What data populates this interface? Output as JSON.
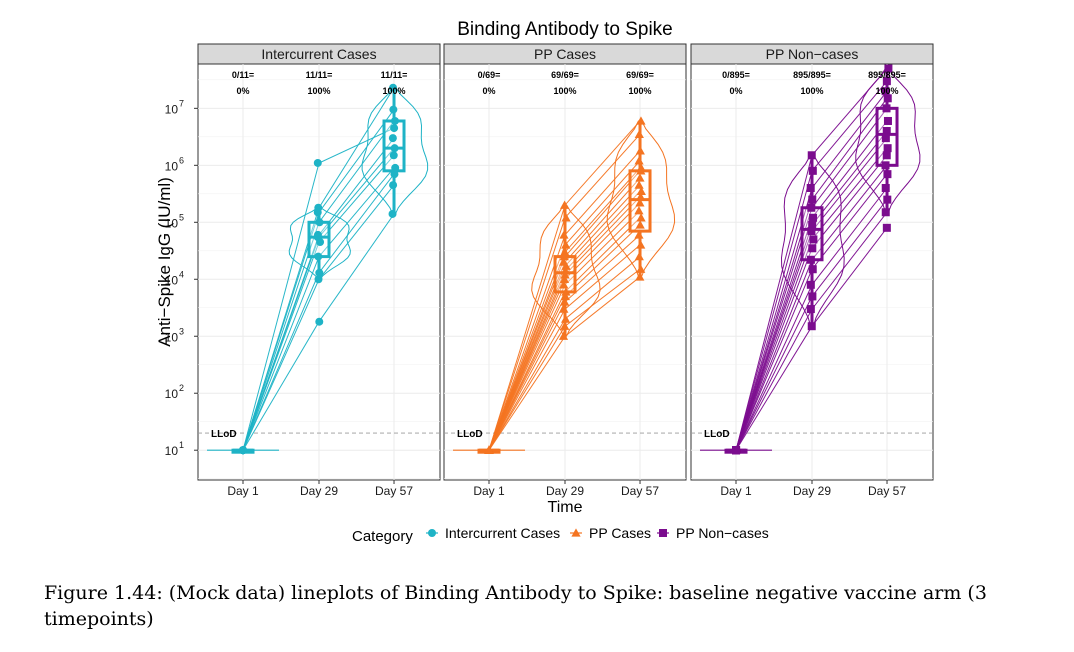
{
  "caption": "Figure 1.44: (Mock data) lineplots of Binding Antibody to Spike: baseline negative vaccine arm (3 timepoints)",
  "chart_data": {
    "type": "line",
    "title": "Binding Antibody to Spike",
    "xlabel": "Time",
    "ylabel": "Anti−Spike IgG (IU/ml)",
    "y_scale": "log10",
    "ylim": [
      3,
      60000000
    ],
    "y_ticks": [
      {
        "value": 10,
        "label": "10",
        "exp": "1"
      },
      {
        "value": 100,
        "label": "10",
        "exp": "2"
      },
      {
        "value": 1000,
        "label": "10",
        "exp": "3"
      },
      {
        "value": 10000,
        "label": "10",
        "exp": "4"
      },
      {
        "value": 100000,
        "label": "10",
        "exp": "5"
      },
      {
        "value": 1000000,
        "label": "10",
        "exp": "6"
      },
      {
        "value": 10000000,
        "label": "10",
        "exp": "7"
      }
    ],
    "categories": [
      "Day 1",
      "Day 29",
      "Day 57"
    ],
    "lloq": {
      "value": 20,
      "label": "LLoD"
    },
    "grid": true,
    "legend": {
      "title": "Category",
      "position": "bottom",
      "entries": [
        {
          "name": "Intercurrent Cases",
          "color": "#1EB3C6",
          "marker": "circle"
        },
        {
          "name": "PP Cases",
          "color": "#F47421",
          "marker": "triangle"
        },
        {
          "name": "PP Non−cases",
          "color": "#7B0C8E",
          "marker": "square"
        }
      ]
    },
    "panels": [
      {
        "strip": "Intercurrent Cases",
        "color": "#1EB3C6",
        "marker": "circle",
        "response_labels": [
          [
            "0/11=",
            "0%"
          ],
          [
            "11/11=",
            "100%"
          ],
          [
            "11/11=",
            "100%"
          ]
        ],
        "boxes": [
          {
            "q1": 10,
            "median": 10,
            "q3": 10,
            "whisker_low": 10,
            "whisker_high": 10
          },
          {
            "q1": 25000,
            "median": 55000,
            "q3": 100000,
            "whisker_low": 10000,
            "whisker_high": 180000
          },
          {
            "q1": 800000,
            "median": 2000000,
            "q3": 6000000,
            "whisker_low": 140000,
            "whisker_high": 23000000
          }
        ],
        "subjects": [
          [
            10,
            1100000,
            4500000
          ],
          [
            10,
            180000,
            23000000
          ],
          [
            10,
            150000,
            9500000
          ],
          [
            10,
            100000,
            6000000
          ],
          [
            10,
            60000,
            3000000
          ],
          [
            10,
            55000,
            2000000
          ],
          [
            10,
            45000,
            1500000
          ],
          [
            10,
            25000,
            900000
          ],
          [
            10,
            13000,
            700000
          ],
          [
            10,
            10000,
            450000
          ],
          [
            10,
            1800,
            140000
          ]
        ]
      },
      {
        "strip": "PP Cases",
        "color": "#F47421",
        "marker": "triangle",
        "response_labels": [
          [
            "0/69=",
            "0%"
          ],
          [
            "69/69=",
            "100%"
          ],
          [
            "69/69=",
            "100%"
          ]
        ],
        "boxes": [
          {
            "q1": 10,
            "median": 10,
            "q3": 10,
            "whisker_low": 10,
            "whisker_high": 10
          },
          {
            "q1": 6000,
            "median": 13000,
            "q3": 25000,
            "whisker_low": 1000,
            "whisker_high": 200000
          },
          {
            "q1": 70000,
            "median": 250000,
            "q3": 800000,
            "whisker_low": 11000,
            "whisker_high": 6000000
          }
        ],
        "subjects": [
          [
            10,
            200000,
            6000000
          ],
          [
            10,
            120000,
            3500000
          ],
          [
            10,
            60000,
            1800000
          ],
          [
            10,
            40000,
            1200000
          ],
          [
            10,
            30000,
            900000
          ],
          [
            10,
            25000,
            800000
          ],
          [
            10,
            20000,
            600000
          ],
          [
            10,
            17000,
            450000
          ],
          [
            10,
            14000,
            350000
          ],
          [
            10,
            12000,
            280000
          ],
          [
            10,
            10000,
            220000
          ],
          [
            10,
            8000,
            160000
          ],
          [
            10,
            6000,
            120000
          ],
          [
            10,
            5000,
            90000
          ],
          [
            10,
            4000,
            60000
          ],
          [
            10,
            3000,
            40000
          ],
          [
            10,
            2000,
            25000
          ],
          [
            10,
            1500,
            15000
          ],
          [
            10,
            1000,
            11000
          ]
        ]
      },
      {
        "strip": "PP Non−cases",
        "color": "#7B0C8E",
        "marker": "square",
        "response_labels": [
          [
            "0/895=",
            "0%"
          ],
          [
            "895/895=",
            "100%"
          ],
          [
            "895/895=",
            "100%"
          ]
        ],
        "boxes": [
          {
            "q1": 10,
            "median": 10,
            "q3": 10,
            "whisker_low": 10,
            "whisker_high": 10
          },
          {
            "q1": 22000,
            "median": 75000,
            "q3": 180000,
            "whisker_low": 1500,
            "whisker_high": 1500000
          },
          {
            "q1": 1000000,
            "median": 3500000,
            "q3": 10000000,
            "whisker_low": 150000,
            "whisker_high": 50000000
          }
        ],
        "subjects": [
          [
            10,
            1500000,
            50000000
          ],
          [
            10,
            800000,
            30000000
          ],
          [
            10,
            400000,
            20000000
          ],
          [
            10,
            250000,
            15000000
          ],
          [
            10,
            180000,
            10000000
          ],
          [
            10,
            120000,
            6000000
          ],
          [
            10,
            90000,
            4000000
          ],
          [
            10,
            70000,
            3000000
          ],
          [
            10,
            50000,
            2000000
          ],
          [
            10,
            35000,
            1500000
          ],
          [
            10,
            22000,
            1000000
          ],
          [
            10,
            15000,
            700000
          ],
          [
            10,
            8000,
            400000
          ],
          [
            10,
            5000,
            250000
          ],
          [
            10,
            3000,
            150000
          ],
          [
            10,
            1500,
            80000
          ]
        ]
      }
    ]
  }
}
